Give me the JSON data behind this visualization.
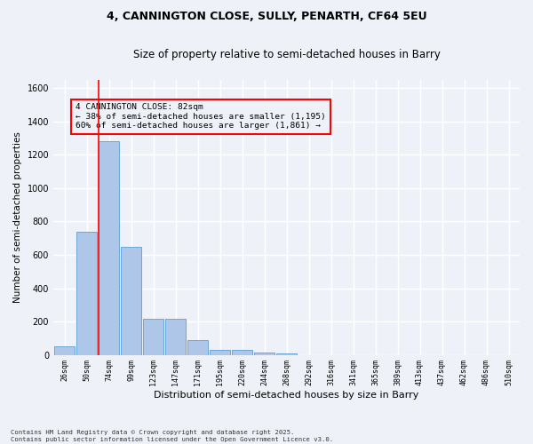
{
  "title_line1": "4, CANNINGTON CLOSE, SULLY, PENARTH, CF64 5EU",
  "title_line2": "Size of property relative to semi-detached houses in Barry",
  "xlabel": "Distribution of semi-detached houses by size in Barry",
  "ylabel": "Number of semi-detached properties",
  "categories": [
    "26sqm",
    "50sqm",
    "74sqm",
    "99sqm",
    "123sqm",
    "147sqm",
    "171sqm",
    "195sqm",
    "220sqm",
    "244sqm",
    "268sqm",
    "292sqm",
    "316sqm",
    "341sqm",
    "365sqm",
    "389sqm",
    "413sqm",
    "437sqm",
    "462sqm",
    "486sqm",
    "510sqm"
  ],
  "bar_values": [
    50,
    740,
    1280,
    650,
    215,
    215,
    90,
    30,
    30,
    15,
    10,
    0,
    0,
    0,
    0,
    0,
    0,
    0,
    0,
    0,
    0
  ],
  "bar_color": "#aec6e8",
  "bar_edge_color": "#5a9fd4",
  "vline_color": "red",
  "annotation_title": "4 CANNINGTON CLOSE: 82sqm",
  "annotation_line1": "← 38% of semi-detached houses are smaller (1,195)",
  "annotation_line2": "60% of semi-detached houses are larger (1,861) →",
  "annotation_box_color": "red",
  "ylim": [
    0,
    1650
  ],
  "yticks": [
    0,
    200,
    400,
    600,
    800,
    1000,
    1200,
    1400,
    1600
  ],
  "footer_line1": "Contains HM Land Registry data © Crown copyright and database right 2025.",
  "footer_line2": "Contains public sector information licensed under the Open Government Licence v3.0.",
  "bg_color": "#eef2f8",
  "grid_color": "#ffffff"
}
